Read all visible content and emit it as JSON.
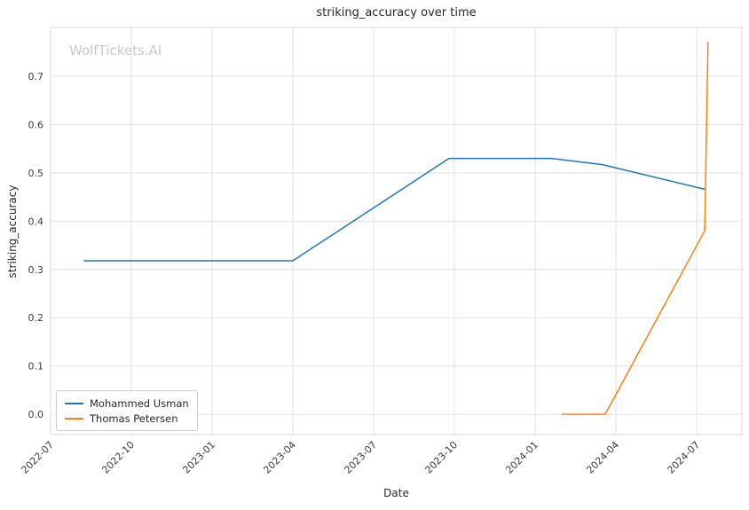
{
  "watermark": "WolfTickets.AI",
  "colors": {
    "background": "#ffffff",
    "grid": "#e0e0e0",
    "spine": "#d8d8d8",
    "tick_label": "#3a3a3a",
    "text": "#262626",
    "watermark": "#c9c9c9"
  },
  "chart_data": {
    "type": "line",
    "title": "striking_accuracy over time",
    "xlabel": "Date",
    "ylabel": "striking_accuracy",
    "grid": true,
    "legend_position": "lower left",
    "x_unit": "months since 2022-07",
    "xlim": [
      0,
      25.68
    ],
    "ylim": [
      -0.042,
      0.801
    ],
    "x_ticks": [
      0,
      3,
      6,
      9,
      12,
      15,
      18,
      21,
      24
    ],
    "x_tick_labels": [
      "2022-07",
      "2022-10",
      "2023-01",
      "2023-04",
      "2023-07",
      "2023-10",
      "2024-01",
      "2024-04",
      "2024-07"
    ],
    "y_ticks": [
      0.0,
      0.1,
      0.2,
      0.3,
      0.4,
      0.5,
      0.6,
      0.7
    ],
    "series": [
      {
        "name": "Mohammed Usman",
        "color": "#1f77b4",
        "points": [
          [
            1.25,
            0.318
          ],
          [
            9.0,
            0.318
          ],
          [
            14.8,
            0.53
          ],
          [
            18.6,
            0.53
          ],
          [
            20.5,
            0.517
          ],
          [
            24.3,
            0.466
          ]
        ]
      },
      {
        "name": "Thomas Petersen",
        "color": "#ff7f0e",
        "points": [
          [
            19.0,
            0.0
          ],
          [
            20.6,
            0.0
          ],
          [
            24.3,
            0.38
          ],
          [
            24.42,
            0.77
          ]
        ]
      }
    ]
  }
}
